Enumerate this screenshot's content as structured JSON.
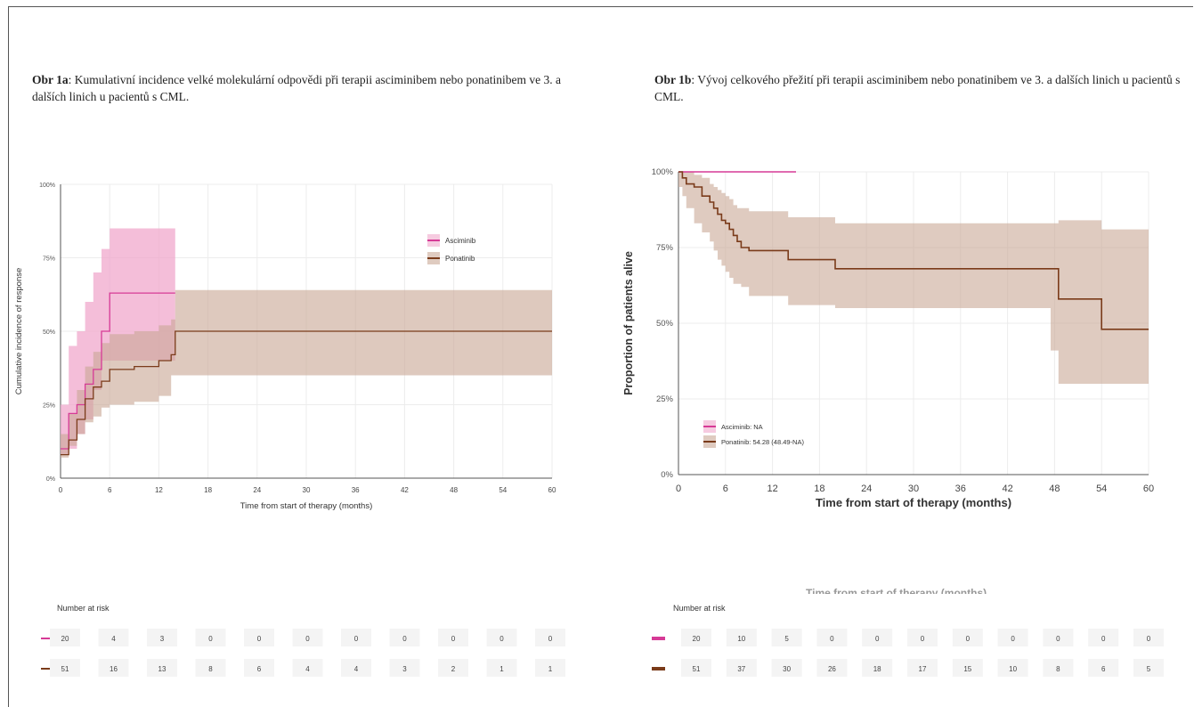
{
  "caption_a": {
    "label": "Obr 1a",
    "text": ": Kumulativní incidence velké molekulární odpovědi při terapii asciminibem nebo ponatinibem ve 3. a dalších linich u pacientů s CML."
  },
  "caption_b": {
    "label": "Obr 1b",
    "text": ": Vývoj celkového přežití při terapii asciminibem nebo ponatinibem ve 3. a dalších linich u pacientů s CML."
  },
  "colors": {
    "asciminib": "#d63a96",
    "ponatinib": "#7a3b1a",
    "asciminib_band": "#f0a8cc",
    "ponatinib_band": "#c9a896"
  },
  "chart_data": [
    {
      "type": "line",
      "subtype": "step-cumulative-incidence",
      "xlabel": "Time from start of therapy (months)",
      "ylabel": "Cumulative incidence of response",
      "xticks": [
        "0",
        "6",
        "12",
        "18",
        "24",
        "30",
        "36",
        "42",
        "48",
        "54",
        "60"
      ],
      "yticks": [
        "0%",
        "25%",
        "50%",
        "75%",
        "100%"
      ],
      "xlim": [
        0,
        60
      ],
      "ylim": [
        0,
        1
      ],
      "grid": true,
      "legend_position": "right",
      "series": [
        {
          "name": "Asciminib",
          "x": [
            0,
            1,
            2,
            3,
            4,
            5,
            6,
            14
          ],
          "y": [
            0.1,
            0.22,
            0.25,
            0.32,
            0.37,
            0.5,
            0.63,
            0.63
          ],
          "lower": [
            0.03,
            0.08,
            0.1,
            0.15,
            0.2,
            0.3,
            0.4,
            0.4
          ],
          "upper": [
            0.25,
            0.45,
            0.5,
            0.6,
            0.7,
            0.78,
            0.85,
            0.85
          ]
        },
        {
          "name": "Ponatinib",
          "x": [
            0,
            1,
            2,
            3,
            4,
            5,
            6,
            9,
            12,
            13.5,
            14,
            60
          ],
          "y": [
            0.08,
            0.13,
            0.2,
            0.27,
            0.31,
            0.33,
            0.37,
            0.38,
            0.4,
            0.42,
            0.5,
            0.5
          ],
          "lower": [
            0.04,
            0.07,
            0.11,
            0.15,
            0.19,
            0.21,
            0.24,
            0.25,
            0.26,
            0.28,
            0.35,
            0.35
          ],
          "upper": [
            0.15,
            0.22,
            0.3,
            0.38,
            0.43,
            0.46,
            0.49,
            0.5,
            0.52,
            0.54,
            0.64,
            0.64
          ]
        }
      ],
      "risk_table": {
        "title": "Number at risk",
        "rows": [
          {
            "series": "Asciminib",
            "values": [
              "20",
              "4",
              "3",
              "0",
              "0",
              "0",
              "0",
              "0",
              "0",
              "0",
              "0"
            ]
          },
          {
            "series": "Ponatinib",
            "values": [
              "51",
              "16",
              "13",
              "8",
              "6",
              "4",
              "4",
              "3",
              "2",
              "1",
              "1"
            ]
          }
        ]
      }
    },
    {
      "type": "line",
      "subtype": "kaplan-meier",
      "xlabel": "Time from start of therapy (months)",
      "ylabel": "Proportion of patients alive",
      "xticks": [
        "0",
        "6",
        "12",
        "18",
        "24",
        "30",
        "36",
        "42",
        "48",
        "54",
        "60"
      ],
      "yticks": [
        "0%",
        "25%",
        "50%",
        "75%",
        "100%"
      ],
      "xlim": [
        0,
        60
      ],
      "ylim": [
        0,
        1
      ],
      "grid": true,
      "legend_position": "bottom-left",
      "series": [
        {
          "name": "Asciminib: NA",
          "x": [
            0,
            15
          ],
          "y": [
            1.0,
            1.0
          ]
        },
        {
          "name": "Ponatinib: 54.28 (48.49-NA)",
          "x": [
            0,
            0.5,
            1,
            2,
            3,
            4,
            4.5,
            5,
            5.5,
            6,
            6.5,
            7,
            7.5,
            8,
            9,
            14,
            20,
            47.5,
            48.5,
            54,
            60
          ],
          "y": [
            1.0,
            0.98,
            0.96,
            0.95,
            0.92,
            0.9,
            0.88,
            0.86,
            0.84,
            0.83,
            0.81,
            0.79,
            0.77,
            0.75,
            0.74,
            0.71,
            0.68,
            0.68,
            0.58,
            0.48,
            0.48
          ],
          "lower": [
            1.0,
            0.95,
            0.92,
            0.88,
            0.83,
            0.8,
            0.77,
            0.74,
            0.71,
            0.69,
            0.67,
            0.65,
            0.63,
            0.63,
            0.62,
            0.59,
            0.56,
            0.55,
            0.41,
            0.3,
            0.3
          ],
          "upper": [
            1.0,
            1.0,
            1.0,
            0.99,
            0.98,
            0.96,
            0.95,
            0.94,
            0.93,
            0.92,
            0.91,
            0.89,
            0.88,
            0.88,
            0.87,
            0.85,
            0.83,
            0.83,
            0.84,
            0.81,
            0.81
          ]
        }
      ],
      "risk_table": {
        "title": "Number at risk",
        "rows": [
          {
            "series": "Asciminib",
            "values": [
              "20",
              "10",
              "5",
              "0",
              "0",
              "0",
              "0",
              "0",
              "0",
              "0",
              "0"
            ]
          },
          {
            "series": "Ponatinib",
            "values": [
              "51",
              "37",
              "30",
              "26",
              "18",
              "17",
              "15",
              "10",
              "8",
              "6",
              "5"
            ]
          }
        ]
      }
    }
  ],
  "ghost_axis_label": "Time from start of therapy (months)"
}
